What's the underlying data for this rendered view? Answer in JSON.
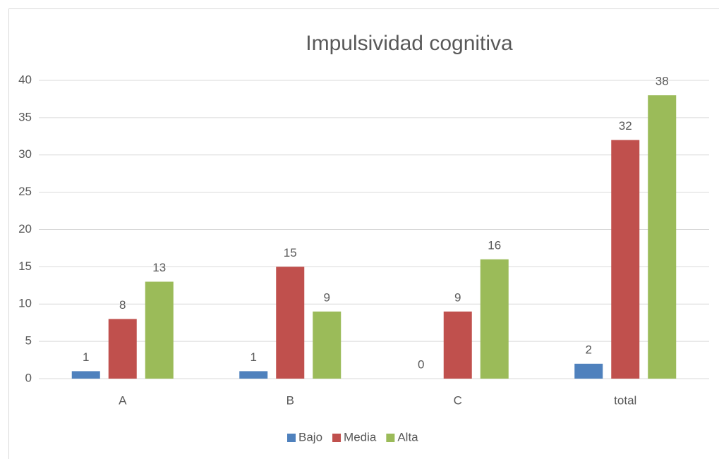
{
  "chart_data": {
    "type": "bar",
    "title": "Impulsividad cognitiva",
    "categories": [
      "A",
      "B",
      "C",
      "total"
    ],
    "series": [
      {
        "name": "Bajo",
        "color": "#4f81bd",
        "values": [
          1,
          1,
          0,
          2
        ]
      },
      {
        "name": "Media",
        "color": "#c0504d",
        "values": [
          8,
          15,
          9,
          32
        ]
      },
      {
        "name": "Alta",
        "color": "#9bbb59",
        "values": [
          13,
          9,
          16,
          38
        ]
      }
    ],
    "ylim": [
      0,
      40
    ],
    "yticks": [
      0,
      5,
      10,
      15,
      20,
      25,
      30,
      35,
      40
    ],
    "grid": true,
    "legend": "bottom"
  }
}
